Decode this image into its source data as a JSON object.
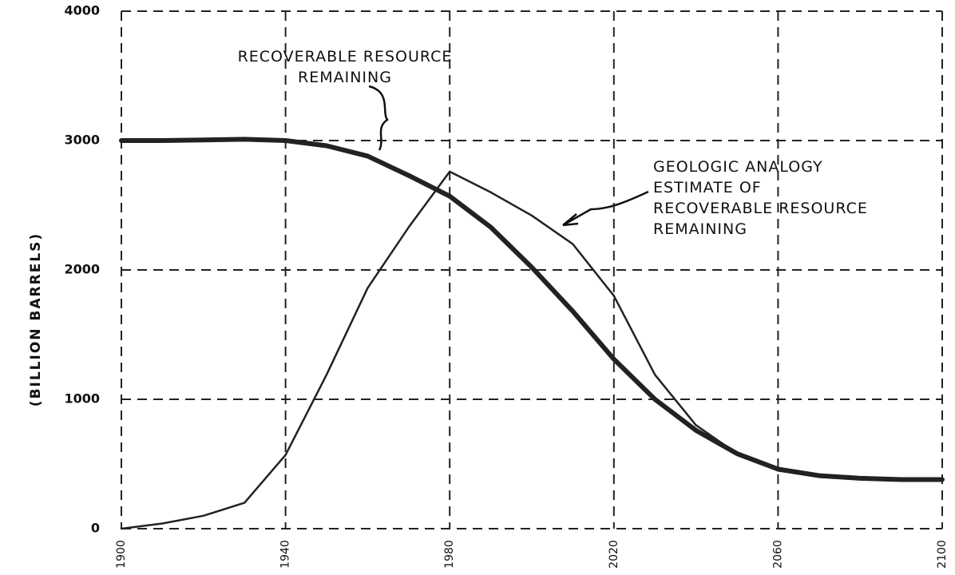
{
  "chart_data": {
    "type": "line",
    "y_label": "(Billion Barrels)",
    "x": [
      1900,
      1910,
      1920,
      1930,
      1940,
      1950,
      1960,
      1970,
      1980,
      1990,
      2000,
      2010,
      2020,
      2030,
      2040,
      2050,
      2060,
      2070,
      2080,
      2090,
      2100
    ],
    "series": [
      {
        "name": "Recoverable Resource Remaining",
        "color": "#222222",
        "width": 6,
        "values": [
          3000,
          3000,
          3005,
          3010,
          3000,
          2960,
          2880,
          2730,
          2570,
          2330,
          2020,
          1680,
          1310,
          1000,
          760,
          580,
          460,
          410,
          390,
          380,
          380
        ]
      },
      {
        "name": "Geologic Analogy Estimate of Recoverable Resource Remaining",
        "color": "#222222",
        "width": 2.5,
        "values": [
          0,
          40,
          100,
          200,
          570,
          1190,
          1860,
          2330,
          2760,
          2600,
          2420,
          2200,
          1800,
          1190,
          800,
          580,
          460,
          410,
          390,
          380,
          380
        ]
      }
    ],
    "xlim": [
      1900,
      2100
    ],
    "xticks": [
      1900,
      1940,
      1980,
      2020,
      2060,
      2100
    ],
    "ylim": [
      0,
      4000
    ],
    "yticks": [
      0,
      1000,
      2000,
      3000,
      4000
    ],
    "grid": true
  }
}
